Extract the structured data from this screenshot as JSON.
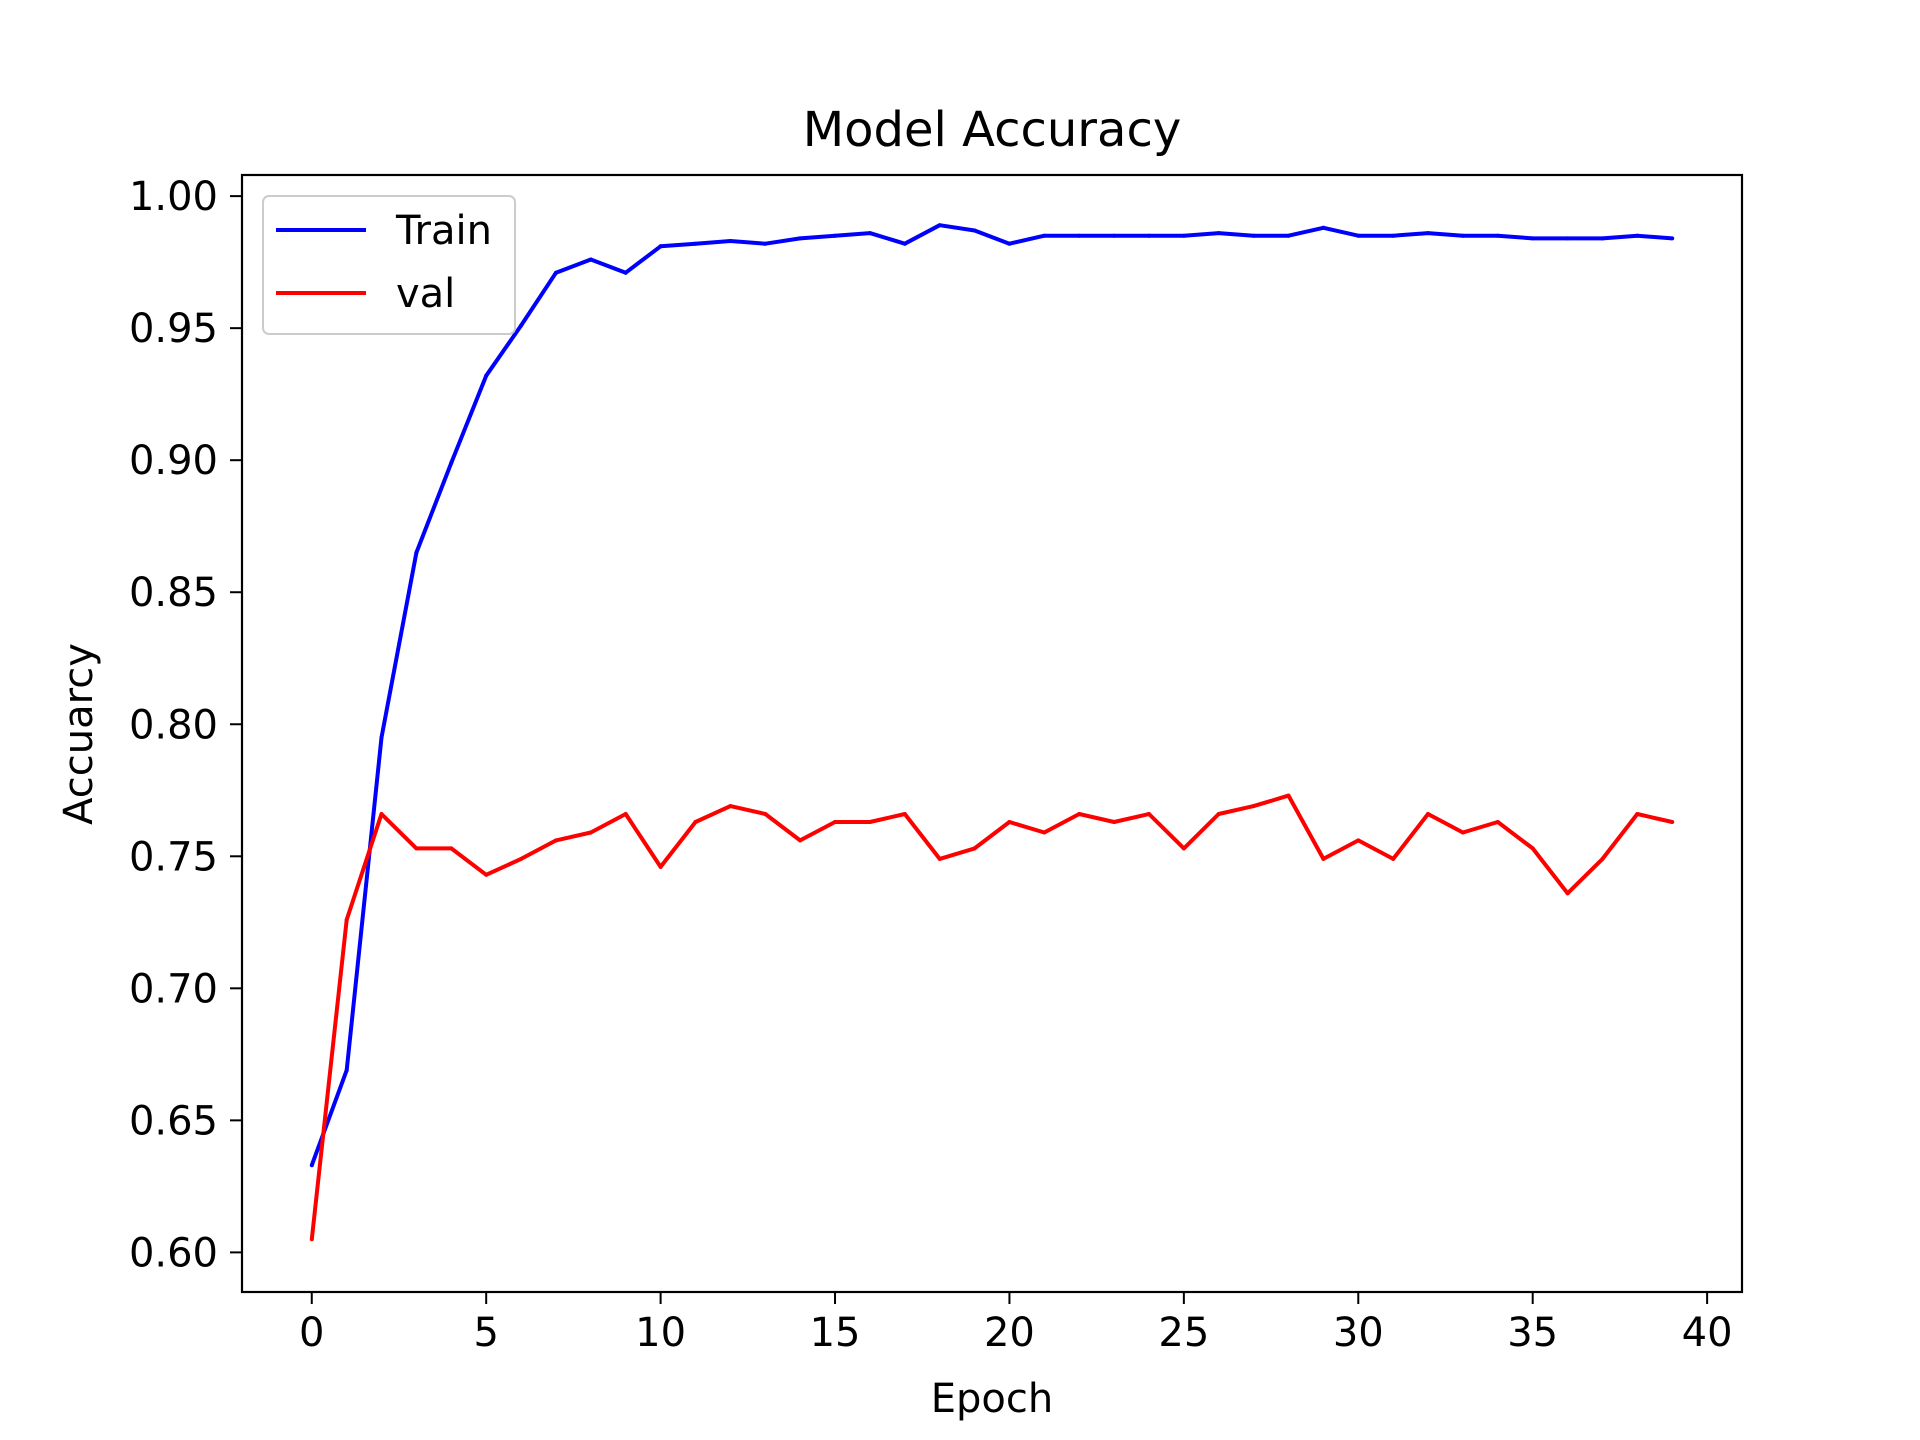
{
  "chart_data": {
    "type": "line",
    "title": "Model Accuracy",
    "xlabel": "Epoch",
    "ylabel": "Accuarcy",
    "xlim": [
      -2,
      41
    ],
    "ylim": [
      0.585,
      1.008
    ],
    "xticks": [
      0,
      5,
      10,
      15,
      20,
      25,
      30,
      35,
      40
    ],
    "yticks": [
      0.6,
      0.65,
      0.7,
      0.75,
      0.8,
      0.85,
      0.9,
      0.95,
      1.0
    ],
    "xtick_labels": [
      "0",
      "5",
      "10",
      "15",
      "20",
      "25",
      "30",
      "35",
      "40"
    ],
    "ytick_labels": [
      "0.60",
      "0.65",
      "0.70",
      "0.75",
      "0.80",
      "0.85",
      "0.90",
      "0.95",
      "1.00"
    ],
    "grid": false,
    "legend_position": "upper-left",
    "x": [
      0,
      1,
      2,
      3,
      4,
      5,
      6,
      7,
      8,
      9,
      10,
      11,
      12,
      13,
      14,
      15,
      16,
      17,
      18,
      19,
      20,
      21,
      22,
      23,
      24,
      25,
      26,
      27,
      28,
      29,
      30,
      31,
      32,
      33,
      34,
      35,
      36,
      37,
      38,
      39
    ],
    "series": [
      {
        "name": "Train",
        "color": "#0000ff",
        "values": [
          0.633,
          0.669,
          0.795,
          0.865,
          0.899,
          0.932,
          0.951,
          0.971,
          0.976,
          0.971,
          0.981,
          0.982,
          0.983,
          0.982,
          0.984,
          0.985,
          0.986,
          0.982,
          0.989,
          0.987,
          0.982,
          0.985,
          0.985,
          0.985,
          0.985,
          0.985,
          0.986,
          0.985,
          0.985,
          0.988,
          0.985,
          0.985,
          0.986,
          0.985,
          0.985,
          0.984,
          0.984,
          0.984,
          0.985,
          0.984
        ]
      },
      {
        "name": "val",
        "color": "#ff0000",
        "values": [
          0.605,
          0.726,
          0.766,
          0.753,
          0.753,
          0.743,
          0.749,
          0.756,
          0.759,
          0.766,
          0.746,
          0.763,
          0.769,
          0.766,
          0.756,
          0.763,
          0.763,
          0.766,
          0.749,
          0.753,
          0.763,
          0.759,
          0.766,
          0.763,
          0.766,
          0.753,
          0.766,
          0.769,
          0.773,
          0.749,
          0.756,
          0.749,
          0.766,
          0.759,
          0.763,
          0.753,
          0.736,
          0.749,
          0.766,
          0.763
        ]
      }
    ]
  }
}
